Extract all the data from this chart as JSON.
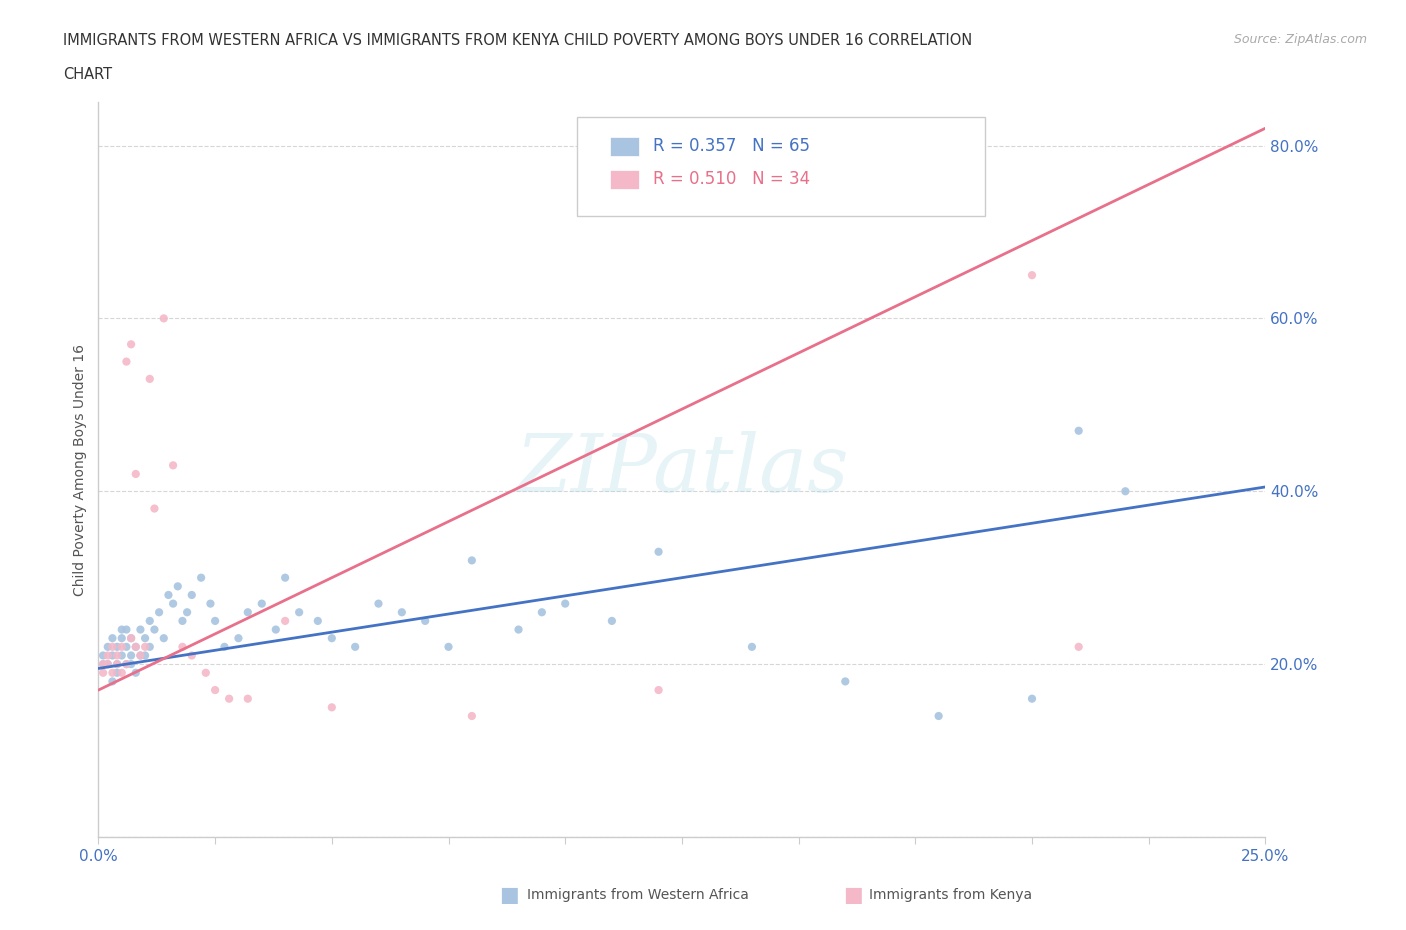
{
  "title_line1": "IMMIGRANTS FROM WESTERN AFRICA VS IMMIGRANTS FROM KENYA CHILD POVERTY AMONG BOYS UNDER 16 CORRELATION",
  "title_line2": "CHART",
  "source": "Source: ZipAtlas.com",
  "ylabel": "Child Poverty Among Boys Under 16",
  "xlim": [
    0.0,
    0.25
  ],
  "ylim": [
    0.0,
    0.85
  ],
  "color_western": "#a8c4e0",
  "color_kenya": "#f4b8c8",
  "line_color_western": "#4472c4",
  "line_color_kenya": "#e8708a",
  "R_western": 0.357,
  "N_western": 65,
  "R_kenya": 0.51,
  "N_kenya": 34,
  "regression_western": [
    0.195,
    0.405
  ],
  "regression_kenya": [
    0.17,
    0.82
  ],
  "western_africa_x": [
    0.001,
    0.001,
    0.002,
    0.002,
    0.003,
    0.003,
    0.003,
    0.004,
    0.004,
    0.004,
    0.005,
    0.005,
    0.005,
    0.006,
    0.006,
    0.006,
    0.007,
    0.007,
    0.007,
    0.008,
    0.008,
    0.009,
    0.009,
    0.01,
    0.01,
    0.011,
    0.011,
    0.012,
    0.013,
    0.014,
    0.015,
    0.016,
    0.017,
    0.018,
    0.019,
    0.02,
    0.022,
    0.024,
    0.025,
    0.027,
    0.03,
    0.032,
    0.035,
    0.038,
    0.04,
    0.043,
    0.047,
    0.05,
    0.055,
    0.06,
    0.065,
    0.07,
    0.075,
    0.08,
    0.09,
    0.095,
    0.1,
    0.11,
    0.12,
    0.14,
    0.16,
    0.18,
    0.2,
    0.21,
    0.22
  ],
  "western_africa_y": [
    0.21,
    0.2,
    0.22,
    0.2,
    0.18,
    0.21,
    0.23,
    0.19,
    0.22,
    0.2,
    0.24,
    0.21,
    0.23,
    0.2,
    0.22,
    0.24,
    0.21,
    0.23,
    0.2,
    0.22,
    0.19,
    0.24,
    0.21,
    0.23,
    0.21,
    0.25,
    0.22,
    0.24,
    0.26,
    0.23,
    0.28,
    0.27,
    0.29,
    0.25,
    0.26,
    0.28,
    0.3,
    0.27,
    0.25,
    0.22,
    0.23,
    0.26,
    0.27,
    0.24,
    0.3,
    0.26,
    0.25,
    0.23,
    0.22,
    0.27,
    0.26,
    0.25,
    0.22,
    0.32,
    0.24,
    0.26,
    0.27,
    0.25,
    0.33,
    0.22,
    0.18,
    0.14,
    0.16,
    0.47,
    0.4
  ],
  "kenya_x": [
    0.001,
    0.001,
    0.002,
    0.002,
    0.003,
    0.003,
    0.004,
    0.004,
    0.005,
    0.005,
    0.006,
    0.006,
    0.007,
    0.007,
    0.008,
    0.008,
    0.009,
    0.01,
    0.011,
    0.012,
    0.014,
    0.016,
    0.018,
    0.02,
    0.023,
    0.025,
    0.028,
    0.032,
    0.04,
    0.05,
    0.08,
    0.12,
    0.2,
    0.21
  ],
  "kenya_y": [
    0.19,
    0.2,
    0.2,
    0.21,
    0.19,
    0.22,
    0.2,
    0.21,
    0.19,
    0.22,
    0.2,
    0.55,
    0.23,
    0.57,
    0.22,
    0.42,
    0.21,
    0.22,
    0.53,
    0.38,
    0.6,
    0.43,
    0.22,
    0.21,
    0.19,
    0.17,
    0.16,
    0.16,
    0.25,
    0.15,
    0.14,
    0.17,
    0.65,
    0.22
  ],
  "watermark_text": "ZIPatlas",
  "background_color": "#ffffff",
  "grid_color": "#cccccc"
}
